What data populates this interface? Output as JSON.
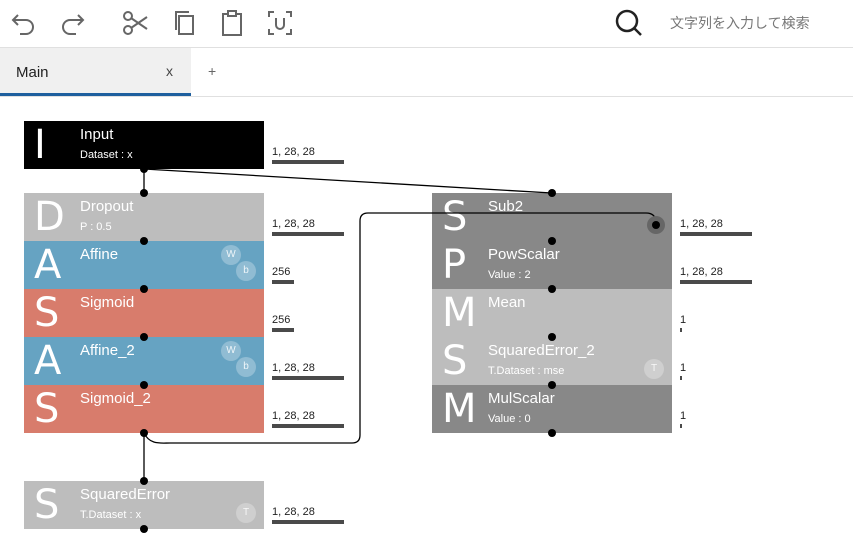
{
  "toolbar": {
    "icons": [
      "undo-icon",
      "redo-icon",
      "cut-icon",
      "copy-icon",
      "paste-icon",
      "select-icon",
      "search-icon"
    ],
    "search": {
      "placeholder": "文字列を入力して検索",
      "value": ""
    }
  },
  "tabs": {
    "main": {
      "label": "Main",
      "close": "x"
    },
    "add": "+"
  },
  "layers": {
    "input": {
      "letter": "I",
      "name": "Input",
      "sub": "Dataset : x",
      "color": "#000000",
      "shape": "1, 28, 28"
    },
    "dropout": {
      "letter": "D",
      "name": "Dropout",
      "sub": "P : 0.5",
      "color": "#bdbdbd",
      "shape": "1, 28, 28"
    },
    "affine": {
      "letter": "A",
      "name": "Affine",
      "w": "W",
      "b": "b",
      "color": "#66a3c2",
      "shape": "256"
    },
    "sigmoid": {
      "letter": "S",
      "name": "Sigmoid",
      "color": "#d87c6c",
      "shape": "256"
    },
    "affine2": {
      "letter": "A",
      "name": "Affine_2",
      "w": "W",
      "b": "b",
      "color": "#66a3c2",
      "shape": "1, 28, 28"
    },
    "sigmoid2": {
      "letter": "S",
      "name": "Sigmoid_2",
      "color": "#d87c6c",
      "shape": "1, 28, 28"
    },
    "squarederror": {
      "letter": "S",
      "name": "SquaredError",
      "sub": "T.Dataset : x",
      "t": "T",
      "color": "#bdbdbd",
      "shape": "1, 28, 28"
    },
    "sub2": {
      "letter": "S",
      "name": "Sub2",
      "color": "#888888",
      "shape": "1, 28, 28"
    },
    "powscalar": {
      "letter": "P",
      "name": "PowScalar",
      "sub": "Value : 2",
      "color": "#888888",
      "shape": "1, 28, 28"
    },
    "mean": {
      "letter": "M",
      "name": "Mean",
      "color": "#bdbdbd",
      "shape": "1"
    },
    "squarederror2": {
      "letter": "S",
      "name": "SquaredError_2",
      "sub": "T.Dataset : mse",
      "t": "T",
      "color": "#bdbdbd",
      "shape": "1"
    },
    "mulscalar": {
      "letter": "M",
      "name": "MulScalar",
      "sub": "Value : 0",
      "color": "#888888",
      "shape": "1"
    }
  }
}
